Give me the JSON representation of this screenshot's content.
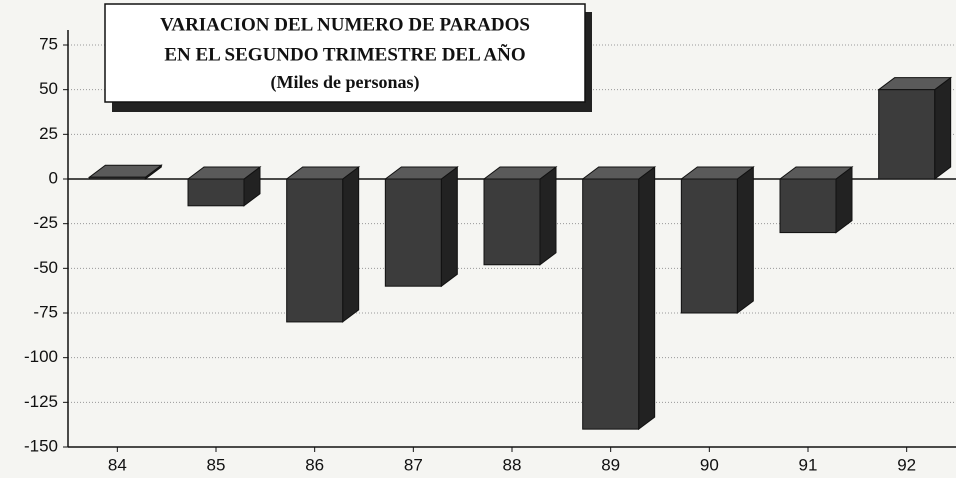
{
  "chart_data": {
    "type": "bar",
    "title": [
      "VARIACION DEL NUMERO DE PARADOS",
      "EN EL SEGUNDO TRIMESTRE DEL AÑO"
    ],
    "subtitle": "(Miles de personas)",
    "categories": [
      "84",
      "85",
      "86",
      "87",
      "88",
      "89",
      "90",
      "91",
      "92"
    ],
    "values": [
      1,
      -15,
      -80,
      -60,
      -48,
      -140,
      -75,
      -30,
      50
    ],
    "color": "#3c3c3c",
    "ylim": [
      -150,
      75
    ],
    "yticks": [
      -150,
      -125,
      -100,
      -75,
      -50,
      -25,
      0,
      25,
      50,
      75
    ],
    "grid": true
  }
}
